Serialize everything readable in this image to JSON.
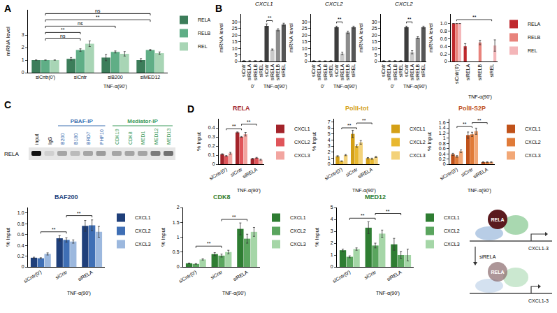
{
  "panel_letters": [
    "A",
    "B",
    "C",
    "D"
  ],
  "chart_data": [
    {
      "type": "bar",
      "ylabel": "mRNA level",
      "categories": [
        "siCntr(0')",
        "siCntr",
        "siB200",
        "siMED12"
      ],
      "groups": [
        {
          "label": "TNF-α(90')",
          "span": [
            1,
            3
          ]
        }
      ],
      "series": [
        {
          "name": "RELA",
          "color": "#3c7d5a",
          "values": [
            1,
            1.1,
            1.2,
            1.0
          ],
          "errors": [
            0,
            0.1,
            0.25,
            0.12
          ]
        },
        {
          "name": "RELB",
          "color": "#5fae86",
          "values": [
            1,
            1.8,
            1.65,
            1.8
          ],
          "errors": [
            0,
            0.1,
            0.08,
            0.05
          ]
        },
        {
          "name": "REL",
          "color": "#a8d5b5",
          "values": [
            1,
            2.3,
            1.5,
            1.55
          ],
          "errors": [
            0,
            0.22,
            0.18,
            0.1
          ]
        }
      ],
      "ylim": [
        0,
        5
      ],
      "yticks": [
        0,
        1,
        2,
        3
      ],
      "grid": false,
      "legend": "right",
      "significance": [
        {
          "from": 0,
          "to": 1,
          "y": 2.7,
          "label": "ns"
        },
        {
          "from": 0,
          "to": 1,
          "y": 3.2,
          "label": "**"
        },
        {
          "from": 0,
          "to": 2,
          "y": 3.7,
          "label": "ns"
        },
        {
          "from": 0,
          "to": 3,
          "y": 4.2,
          "label": "**"
        },
        {
          "from": 0,
          "to": 3,
          "y": 4.7,
          "label": "ns"
        }
      ]
    },
    {
      "type": "bar",
      "title": "CXCL1",
      "ylabel": "mRNA level",
      "categories": [
        "siCntr",
        "siRELA",
        "siRELB",
        "siREL",
        "siCntr",
        "siRELA",
        "siRELB",
        "siREL"
      ],
      "groups": [
        {
          "label": "0'",
          "span": [
            0,
            3
          ]
        },
        {
          "label": "TNF-α(90')",
          "span": [
            4,
            7
          ]
        }
      ],
      "values": [
        0.5,
        0.5,
        0.5,
        0.5,
        27,
        9,
        24,
        28
      ],
      "errors": [
        0.1,
        0.1,
        0.1,
        0.1,
        1.5,
        0.5,
        0.8,
        1.0
      ],
      "colors": [
        "#3d3d3d",
        "#c9c9c9",
        "#8c8c8c",
        "#555555",
        "#3d3d3d",
        "#c9c9c9",
        "#8c8c8c",
        "#555555"
      ],
      "ylim": [
        0,
        36
      ],
      "yticks": [
        0,
        5,
        10,
        15,
        20,
        25,
        30
      ],
      "grid": false,
      "significance": [
        {
          "from": 4,
          "to": 5,
          "y": 31,
          "label": "**"
        }
      ]
    },
    {
      "type": "bar",
      "title": "CXCL2",
      "ylabel": "mRNA level",
      "categories": [
        "siCntr",
        "siRELA",
        "siRELB",
        "siREL",
        "siCntr",
        "siRELA",
        "siRELB",
        "siREL"
      ],
      "groups": [
        {
          "label": "0'",
          "span": [
            0,
            3
          ]
        },
        {
          "label": "TNF-α(90')",
          "span": [
            4,
            7
          ]
        }
      ],
      "values": [
        0.5,
        0.4,
        0.4,
        0.5,
        26,
        6,
        22,
        26
      ],
      "errors": [
        0.1,
        0.1,
        0.1,
        0.1,
        0.8,
        1.0,
        1.0,
        0.8
      ],
      "colors": [
        "#3d3d3d",
        "#c9c9c9",
        "#8c8c8c",
        "#555555",
        "#3d3d3d",
        "#c9c9c9",
        "#8c8c8c",
        "#555555"
      ],
      "ylim": [
        0,
        36
      ],
      "yticks": [
        0,
        5,
        10,
        15,
        20,
        25,
        30
      ],
      "grid": false,
      "significance": [
        {
          "from": 4,
          "to": 5,
          "y": 30,
          "label": "**"
        }
      ]
    },
    {
      "type": "bar",
      "title": "CXCL2",
      "ylabel": "mRNA level",
      "categories": [
        "siCntr",
        "siRELA",
        "siRELB",
        "siREL",
        "siCntr",
        "siRELA",
        "siRELB",
        "siREL"
      ],
      "groups": [
        {
          "label": "0'",
          "span": [
            0,
            3
          ]
        },
        {
          "label": "TNF-α(90')",
          "span": [
            4,
            7
          ]
        }
      ],
      "values": [
        0.5,
        0.5,
        0.5,
        0.5,
        26,
        7,
        18,
        26
      ],
      "errors": [
        0.1,
        0.1,
        0.1,
        0.1,
        0.8,
        1.2,
        0.8,
        0.8
      ],
      "colors": [
        "#3d3d3d",
        "#c9c9c9",
        "#8c8c8c",
        "#555555",
        "#3d3d3d",
        "#c9c9c9",
        "#8c8c8c",
        "#555555"
      ],
      "ylim": [
        0,
        36
      ],
      "yticks": [
        0,
        5,
        10,
        15,
        20,
        25,
        30
      ],
      "grid": false,
      "significance": [
        {
          "from": 4,
          "to": 5,
          "y": 30,
          "label": "**"
        }
      ]
    },
    {
      "type": "bar",
      "ylabel": "mRNA level",
      "categories": [
        "siCntr(0')",
        "siRELA",
        "siRELB",
        "siREL"
      ],
      "groups": [
        {
          "label": "TNF-α(90')",
          "span": [
            1,
            3
          ]
        }
      ],
      "series": [
        {
          "name": "RELA",
          "color": "#c0282d",
          "values": [
            1,
            0.4,
            null,
            null
          ],
          "errors": [
            0,
            0.07,
            null,
            null
          ]
        },
        {
          "name": "RELB",
          "color": "#e8837c",
          "values": [
            1,
            null,
            0.5,
            null
          ],
          "errors": [
            0,
            null,
            0.06,
            null
          ]
        },
        {
          "name": "REL",
          "color": "#f4b6b9",
          "values": [
            1,
            null,
            null,
            0.42
          ],
          "errors": [
            0,
            null,
            null,
            0.15
          ]
        }
      ],
      "ylim": [
        0,
        1.25
      ],
      "yticks": [
        0,
        0.2,
        0.4,
        0.6,
        0.8,
        {
          "value": 1,
          "label": "1.0"
        }
      ],
      "grid": false,
      "legend": "right",
      "significance": [
        {
          "from": 0,
          "to": 3,
          "y": 1.1,
          "label": "**"
        }
      ]
    },
    {
      "type": "bar",
      "title": "RELA",
      "ylabel": "% Input",
      "categories": [
        "siCntr(0')",
        "siCntr",
        "siRELA"
      ],
      "groups": [
        {
          "label": "TNF-α(90')",
          "span": [
            1,
            2
          ]
        }
      ],
      "series": [
        {
          "name": "CXCL1",
          "color": "#a3232a",
          "values": [
            0.11,
            0.35,
            0.06
          ],
          "errors": [
            0.005,
            0.005,
            0.005
          ]
        },
        {
          "name": "CXCL2",
          "color": "#e0555a",
          "values": [
            0.09,
            0.3,
            0.07
          ],
          "errors": [
            0.005,
            0.005,
            0.005
          ]
        },
        {
          "name": "CXCL3",
          "color": "#f2a5a0",
          "values": [
            0.12,
            0.33,
            0.05
          ],
          "errors": [
            0.01,
            0.02,
            0.005
          ]
        }
      ],
      "ylim": [
        0,
        0.5
      ],
      "yticks": [
        0,
        0.1,
        0.2,
        0.3,
        0.4
      ],
      "grid": false,
      "legend": "right",
      "significance": [
        {
          "from": 0,
          "to": 1,
          "y": 0.39,
          "label": "**"
        },
        {
          "from": 1,
          "to": 2,
          "y": 0.44,
          "label": "**"
        }
      ]
    },
    {
      "type": "bar",
      "title": "PolII-tot",
      "ylabel": "% Input",
      "categories": [
        "siCntr(0')",
        "siCntr",
        "siRELA"
      ],
      "groups": [
        {
          "label": "TNF-α(90')",
          "span": [
            1,
            2
          ]
        }
      ],
      "series": [
        {
          "name": "CXCL1",
          "color": "#d4a017",
          "values": [
            1.3,
            5.0,
            1.0
          ],
          "errors": [
            0.1,
            0.6,
            0.1
          ]
        },
        {
          "name": "CXCL2",
          "color": "#e8b830",
          "values": [
            0.5,
            3.0,
            0.9
          ],
          "errors": [
            0.05,
            0.2,
            0.1
          ]
        },
        {
          "name": "CXCL3",
          "color": "#f3d27a",
          "values": [
            1.5,
            3.6,
            1.2
          ],
          "errors": [
            0.1,
            0.3,
            0.1
          ]
        }
      ],
      "ylim": [
        0,
        7.5
      ],
      "yticks": [
        0,
        1,
        2,
        3,
        4,
        5,
        6,
        7
      ],
      "grid": false,
      "legend": "right",
      "significance": [
        {
          "from": 0,
          "to": 1,
          "y": 6.0,
          "label": "**"
        },
        {
          "from": 1,
          "to": 2,
          "y": 6.8,
          "label": "**"
        }
      ]
    },
    {
      "type": "bar",
      "title": "PolII-S2P",
      "ylabel": "% Input",
      "categories": [
        "siCntr(0')",
        "siCntr",
        "siRELA"
      ],
      "groups": [
        {
          "label": "TNF-α(90')",
          "span": [
            1,
            2
          ]
        }
      ],
      "series": [
        {
          "name": "CXCL1",
          "color": "#c0521a",
          "values": [
            0.38,
            1.12,
            0.08
          ],
          "errors": [
            0.04,
            0.12,
            0.01
          ]
        },
        {
          "name": "CXCL2",
          "color": "#e07b39",
          "values": [
            0.3,
            1.15,
            0.08
          ],
          "errors": [
            0.03,
            0.08,
            0.01
          ]
        },
        {
          "name": "CXCL3",
          "color": "#f2a877",
          "values": [
            0.5,
            1.27,
            0.08
          ],
          "errors": [
            0.05,
            0.12,
            0.01
          ]
        }
      ],
      "ylim": [
        0,
        1.75
      ],
      "yticks": [
        0,
        0.2,
        0.4,
        0.6,
        0.8,
        1,
        1.2,
        1.4,
        1.6
      ],
      "grid": false,
      "legend": "right",
      "significance": [
        {
          "from": 0,
          "to": 1,
          "y": 1.45,
          "label": "**"
        },
        {
          "from": 1,
          "to": 2,
          "y": 1.6,
          "label": "**"
        }
      ]
    },
    {
      "type": "bar",
      "title": "BAF200",
      "ylabel": "% Input",
      "categories": [
        "siCntr(0')",
        "siCntr",
        "siRELA"
      ],
      "groups": [
        {
          "label": "TNF-α(90')",
          "span": [
            1,
            2
          ]
        }
      ],
      "series": [
        {
          "name": "CXCL1",
          "color": "#1f3f7a",
          "values": [
            0.17,
            0.53,
            0.76
          ],
          "errors": [
            0.01,
            0.05,
            0.1
          ]
        },
        {
          "name": "CXCL2",
          "color": "#3f6fb5",
          "values": [
            0.16,
            0.5,
            0.77
          ],
          "errors": [
            0.01,
            0.04,
            0.1
          ]
        },
        {
          "name": "CXCL3",
          "color": "#9cb8de",
          "values": [
            0.24,
            0.47,
            0.65
          ],
          "errors": [
            0.02,
            0.03,
            0.1
          ]
        }
      ],
      "ylim": [
        0,
        1.1
      ],
      "yticks": [
        0,
        0.2,
        0.4,
        0.6,
        0.8,
        {
          "value": 1,
          "label": "1.0"
        }
      ],
      "grid": false,
      "legend": "right",
      "significance": [
        {
          "from": 0,
          "to": 1,
          "y": 0.65,
          "label": "**"
        },
        {
          "from": 1,
          "to": 2,
          "y": 0.95,
          "label": "**"
        }
      ]
    },
    {
      "type": "bar",
      "title": "CDK8",
      "ylabel": "% Input",
      "categories": [
        "siCntr(0')",
        "siCntr",
        "siRELA"
      ],
      "groups": [
        {
          "label": "TNF-α(90')",
          "span": [
            1,
            2
          ]
        }
      ],
      "series": [
        {
          "name": "CXCL1",
          "color": "#2e7d32",
          "values": [
            0.12,
            0.43,
            1.28
          ],
          "errors": [
            0.01,
            0.05,
            0.2
          ]
        },
        {
          "name": "CXCL2",
          "color": "#5aa55e",
          "values": [
            0.1,
            0.38,
            0.95
          ],
          "errors": [
            0.01,
            0.05,
            0.15
          ]
        },
        {
          "name": "CXCL3",
          "color": "#a5d6a7",
          "values": [
            0.25,
            0.5,
            1.18
          ],
          "errors": [
            0.02,
            0.06,
            0.15
          ]
        }
      ],
      "ylim": [
        0,
        2
      ],
      "yticks": [
        0,
        0.5,
        1,
        1.5,
        2
      ],
      "grid": false,
      "legend": "right",
      "significance": [
        {
          "from": 0,
          "to": 1,
          "y": 0.7,
          "label": "**"
        },
        {
          "from": 1,
          "to": 2,
          "y": 1.6,
          "label": "**"
        }
      ]
    },
    {
      "type": "bar",
      "title": "MED12",
      "ylabel": "% Input",
      "categories": [
        "siCntr(0')",
        "siCntr",
        "siRELA"
      ],
      "groups": [
        {
          "label": "TNF-α(90')",
          "span": [
            1,
            2
          ]
        }
      ],
      "series": [
        {
          "name": "CXCL1",
          "color": "#2e7d32",
          "values": [
            1.4,
            3.3,
            1.9
          ],
          "errors": [
            0.1,
            0.5,
            0.5
          ]
        },
        {
          "name": "CXCL2",
          "color": "#5aa55e",
          "values": [
            0.85,
            1.8,
            1.0
          ],
          "errors": [
            0.08,
            0.2,
            0.3
          ]
        },
        {
          "name": "CXCL3",
          "color": "#a5d6a7",
          "values": [
            1.5,
            2.8,
            1.0
          ],
          "errors": [
            0.1,
            0.3,
            0.5
          ]
        }
      ],
      "ylim": [
        0,
        5
      ],
      "yticks": [
        0,
        1,
        2,
        3,
        4,
        5
      ],
      "grid": false,
      "legend": "right",
      "significance": [
        {
          "from": 0,
          "to": 1,
          "y": 4.1,
          "label": "**"
        },
        {
          "from": 1,
          "to": 2,
          "y": 4.5,
          "label": "**"
        }
      ]
    }
  ],
  "blot": {
    "row_label": "RELA",
    "lanes": [
      {
        "label": "input",
        "signal": 1.0
      },
      {
        "label": "IgG",
        "signal": 0.1
      },
      {
        "label": "B200",
        "signal": 0.3
      },
      {
        "label": "B180",
        "signal": 0.2
      },
      {
        "label": "BRD7",
        "signal": 0.3
      },
      {
        "label": "PHF10",
        "signal": 0.35
      },
      {
        "label": "CDK19",
        "signal": 0.3
      },
      {
        "label": "CDK8",
        "signal": 0.3
      },
      {
        "label": "MED1",
        "signal": 0.3
      },
      {
        "label": "MED12",
        "signal": 0.5
      },
      {
        "label": "MED13",
        "signal": 0.55
      }
    ],
    "groups": [
      {
        "label": "PBAF-IP",
        "color": "#3a6fb0",
        "lanes": [
          "B200",
          "B180",
          "BRD7",
          "PHF10"
        ]
      },
      {
        "label": "Mediator-IP",
        "color": "#3a9a5a",
        "lanes": [
          "CDK19",
          "CDK8",
          "MED1",
          "MED12",
          "MED13"
        ]
      }
    ]
  },
  "schematic": {
    "factor": "RELA",
    "target": "CXCL1-3",
    "perturbation": "siRELA"
  }
}
